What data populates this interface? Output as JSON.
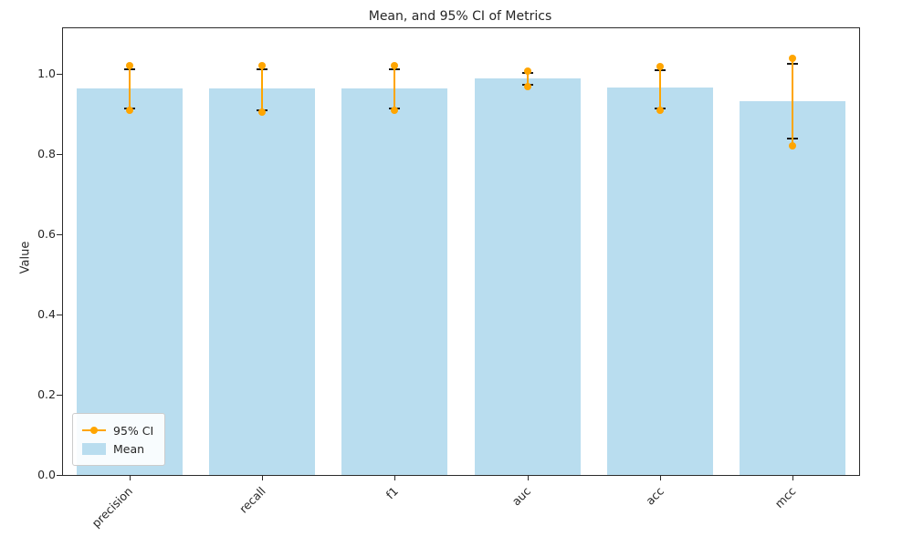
{
  "chart_data": {
    "type": "bar",
    "title": "Mean, and 95% CI of Metrics",
    "ylabel": "Value",
    "xlabel": "",
    "categories": [
      "precision",
      "recall",
      "f1",
      "auc",
      "acc",
      "mcc"
    ],
    "series": [
      {
        "name": "Mean",
        "values": [
          0.965,
          0.964,
          0.964,
          0.99,
          0.966,
          0.932
        ]
      },
      {
        "name": "95% CI low",
        "values": [
          0.91,
          0.905,
          0.91,
          0.968,
          0.91,
          0.82
        ]
      },
      {
        "name": "95% CI high",
        "values": [
          1.02,
          1.02,
          1.02,
          1.008,
          1.018,
          1.04
        ]
      }
    ],
    "error_caps": {
      "low": [
        0.915,
        0.91,
        0.915,
        0.972,
        0.915,
        0.84
      ],
      "high": [
        1.012,
        1.012,
        1.012,
        1.002,
        1.01,
        1.025
      ]
    },
    "yticks": [
      0.0,
      0.2,
      0.4,
      0.6,
      0.8,
      1.0
    ],
    "ylim": [
      0,
      1.114
    ],
    "grid": false,
    "legend_position": "lower left",
    "legend": [
      {
        "label": "95% CI",
        "marker": "line-dot",
        "color": "#ffa500"
      },
      {
        "label": "Mean",
        "marker": "patch",
        "color": "#b9ddef"
      }
    ],
    "colors": {
      "bar": "#b9ddef",
      "ci": "#ffa500",
      "cap": "#1a1a1a"
    }
  }
}
